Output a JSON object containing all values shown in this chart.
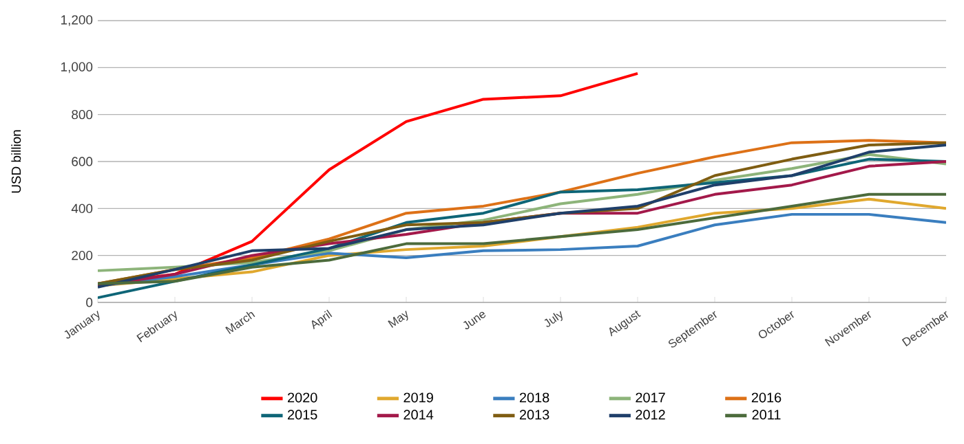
{
  "chart_data": {
    "type": "line",
    "ylabel": "USD billion",
    "categories": [
      "January",
      "February",
      "March",
      "April",
      "May",
      "June",
      "July",
      "August",
      "September",
      "October",
      "November",
      "December"
    ],
    "ylim": [
      0,
      1200
    ],
    "yticks": [
      0,
      200,
      400,
      600,
      800,
      {
        "value": 1000,
        "label": "1,000"
      },
      {
        "value": 1200,
        "label": "1,200"
      }
    ],
    "grid": "y",
    "legend": "bottom",
    "marker": "none",
    "line_style": "solid",
    "series": [
      {
        "name": "2020",
        "color": "#ff0000",
        "values": [
          80,
          120,
          260,
          565,
          770,
          865,
          880,
          975,
          null,
          null,
          null,
          null
        ]
      },
      {
        "name": "2019",
        "color": "#e0a82e",
        "values": [
          70,
          100,
          130,
          200,
          225,
          240,
          280,
          320,
          380,
          400,
          440,
          400
        ]
      },
      {
        "name": "2018",
        "color": "#3a7ebf",
        "values": [
          70,
          110,
          160,
          210,
          190,
          220,
          225,
          240,
          330,
          375,
          375,
          340
        ]
      },
      {
        "name": "2017",
        "color": "#8db47a",
        "values": [
          135,
          150,
          170,
          220,
          310,
          350,
          420,
          460,
          520,
          570,
          630,
          590
        ]
      },
      {
        "name": "2016",
        "color": "#dd7117",
        "values": [
          80,
          140,
          190,
          270,
          380,
          410,
          470,
          550,
          620,
          680,
          690,
          680
        ]
      },
      {
        "name": "2015",
        "color": "#0e6577",
        "values": [
          20,
          90,
          160,
          230,
          340,
          380,
          470,
          480,
          510,
          540,
          610,
          600
        ]
      },
      {
        "name": "2014",
        "color": "#a3194a",
        "values": [
          70,
          120,
          200,
          250,
          290,
          340,
          380,
          380,
          460,
          500,
          580,
          600
        ]
      },
      {
        "name": "2013",
        "color": "#7f5d12",
        "values": [
          80,
          140,
          180,
          260,
          330,
          340,
          380,
          400,
          540,
          610,
          670,
          680
        ]
      },
      {
        "name": "2012",
        "color": "#1f3f6a",
        "values": [
          65,
          140,
          220,
          230,
          310,
          330,
          380,
          410,
          500,
          540,
          640,
          670
        ]
      },
      {
        "name": "2011",
        "color": "#4c6b3c",
        "values": [
          80,
          90,
          150,
          180,
          250,
          250,
          280,
          310,
          360,
          410,
          460,
          460
        ]
      }
    ]
  }
}
